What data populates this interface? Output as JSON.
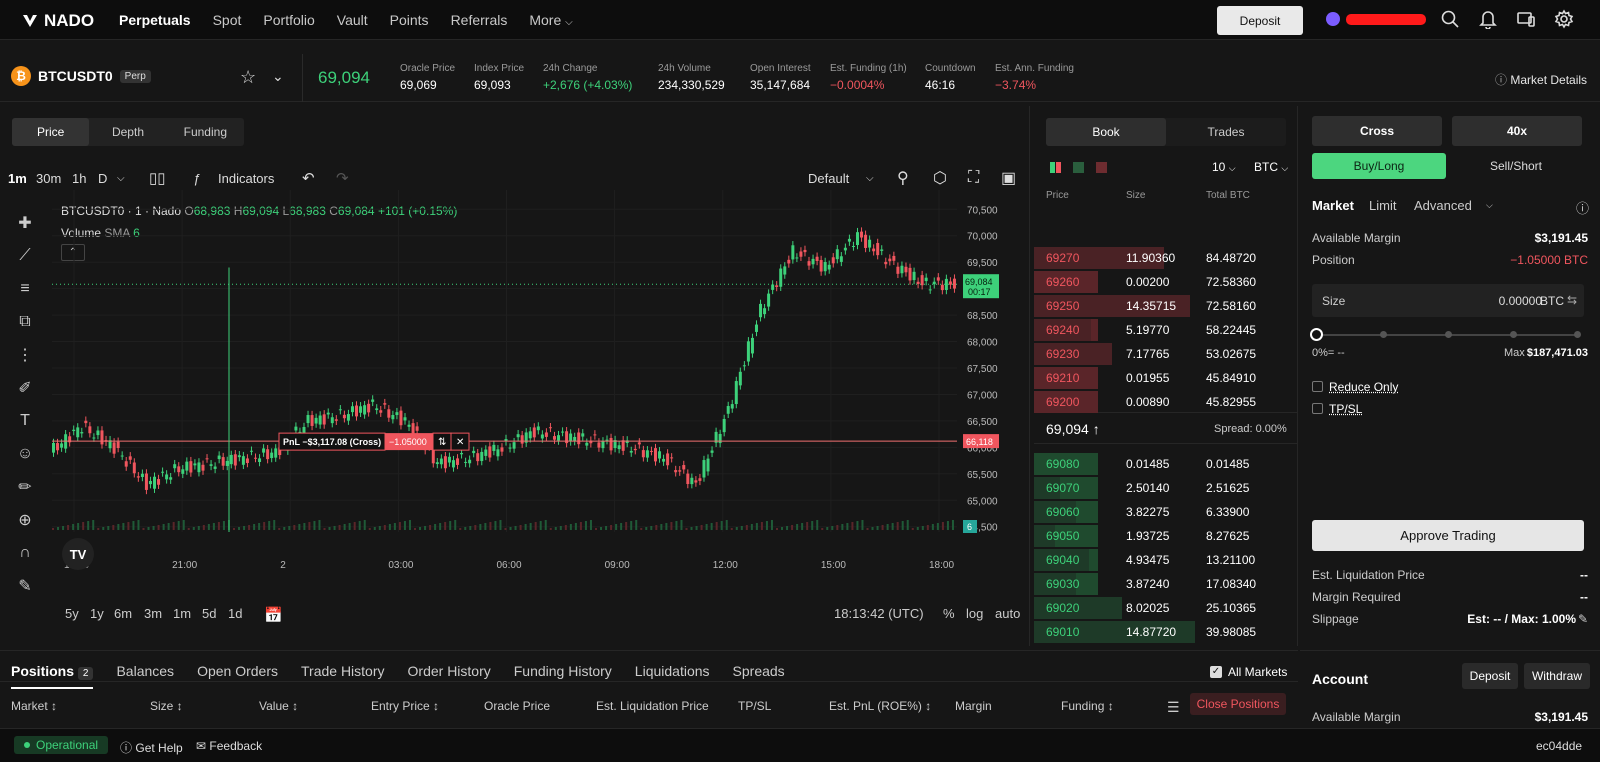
{
  "nav": {
    "brand": "NADO",
    "items": [
      "Perpetuals",
      "Spot",
      "Portfolio",
      "Vault",
      "Points",
      "Referrals",
      "More"
    ],
    "deposit_label": "Deposit"
  },
  "market": {
    "symbol": "BTCUSDT0",
    "badge": "Perp",
    "last_price": "69,094",
    "stats": [
      {
        "label": "Oracle Price",
        "value": "69,069",
        "tone": "neutral"
      },
      {
        "label": "Index Price",
        "value": "69,093",
        "tone": "neutral"
      },
      {
        "label": "24h Change",
        "value": "+2,676 (+4.03%)",
        "tone": "up"
      },
      {
        "label": "24h Volume",
        "value": "234,330,529",
        "tone": "neutral"
      },
      {
        "label": "Open Interest",
        "value": "35,147,684",
        "tone": "neutral"
      },
      {
        "label": "Est. Funding (1h)",
        "value": "−0.0004%",
        "tone": "down"
      },
      {
        "label": "Countdown",
        "value": "46:16",
        "tone": "neutral"
      },
      {
        "label": "Est. Ann. Funding",
        "value": "−3.74%",
        "tone": "down"
      }
    ],
    "details_label": "Market Details"
  },
  "chart_tabs": [
    "Price",
    "Depth",
    "Funding"
  ],
  "toolbar": {
    "intervals": [
      "1m",
      "30m",
      "1h",
      "D"
    ],
    "indicators_label": "Indicators",
    "layout_label": "Default"
  },
  "chart_legend": {
    "title": "BTCUSDT0 · 1 · Nado",
    "o": "68,983",
    "h": "69,094",
    "l": "68,983",
    "c": "69,084",
    "change": "+101 (+0.15%)",
    "volume_label": "Volume",
    "sma_label": "SMA",
    "sma_value": "6"
  },
  "chart_data": {
    "type": "line",
    "title": "",
    "xlabel": "",
    "ylabel": "",
    "x_ticks": [
      "18:00",
      "21:00",
      "2",
      "03:00",
      "06:00",
      "09:00",
      "12:00",
      "15:00",
      "18:00"
    ],
    "y_ticks": [
      "70,500",
      "70,000",
      "69,500",
      "69,000",
      "68,500",
      "68,000",
      "67,500",
      "67,000",
      "66,500",
      "66,000",
      "65,500",
      "65,000",
      "64,500"
    ],
    "ylim": [
      64400,
      70600
    ],
    "series": [
      {
        "name": "",
        "x": [
          "18:00",
          "19:00",
          "20:00",
          "21:00",
          "22:00",
          "23:00",
          "2",
          "01:00",
          "02:00",
          "03:00",
          "04:00",
          "05:00",
          "06:00",
          "07:00",
          "08:00",
          "09:00",
          "10:00",
          "11:00",
          "12:00",
          "13:00",
          "14:00",
          "15:00",
          "15:30",
          "16:00",
          "16:30",
          "17:00",
          "17:30",
          "18:00",
          "18:13"
        ],
        "values": [
          65900,
          66400,
          66000,
          65300,
          65600,
          65700,
          65800,
          65900,
          66500,
          66600,
          66800,
          66500,
          65700,
          65800,
          66000,
          66300,
          66200,
          66100,
          66000,
          65800,
          65300,
          66700,
          68600,
          69700,
          69400,
          70000,
          69500,
          69100,
          69084
        ]
      }
    ],
    "last_price_label": "69,084",
    "last_price_countdown": "00:17",
    "position_line_value": "66,118",
    "volume_last": "6",
    "pnl_label": "PnL −$3,117.08 (Cross)",
    "pnl_size": "−1.05000"
  },
  "chart_bottom": {
    "ranges": [
      "5y",
      "1y",
      "6m",
      "3m",
      "1m",
      "5d",
      "1d"
    ],
    "time": "18:13:42 (UTC)",
    "percent": "%",
    "log": "log",
    "auto": "auto"
  },
  "book": {
    "tabs": [
      "Book",
      "Trades"
    ],
    "depth": "10",
    "unit": "BTC",
    "headers": [
      "Price",
      "Size",
      "Total BTC"
    ],
    "asks": [
      {
        "price": "69270",
        "size": "11.90360",
        "total": "84.48720",
        "fill": 0.5
      },
      {
        "price": "69260",
        "size": "0.00200",
        "total": "72.58360",
        "fill": 0.0
      },
      {
        "price": "69250",
        "size": "14.35715",
        "total": "72.58160",
        "fill": 0.6
      },
      {
        "price": "69240",
        "size": "5.19770",
        "total": "58.22445",
        "fill": 0.22
      },
      {
        "price": "69230",
        "size": "7.17765",
        "total": "53.02675",
        "fill": 0.3
      },
      {
        "price": "69210",
        "size": "0.01955",
        "total": "45.84910",
        "fill": 0.0
      },
      {
        "price": "69200",
        "size": "0.00890",
        "total": "45.82955",
        "fill": 0.0
      }
    ],
    "mid_price": "69,094 ↑",
    "spread": "Spread: 0.00%",
    "bids": [
      {
        "price": "69080",
        "size": "0.01485",
        "total": "0.01485",
        "fill": 0.0
      },
      {
        "price": "69070",
        "size": "2.50140",
        "total": "2.51625",
        "fill": 0.1
      },
      {
        "price": "69060",
        "size": "3.82275",
        "total": "6.33900",
        "fill": 0.16
      },
      {
        "price": "69050",
        "size": "1.93725",
        "total": "8.27625",
        "fill": 0.08
      },
      {
        "price": "69040",
        "size": "4.93475",
        "total": "13.21100",
        "fill": 0.21
      },
      {
        "price": "69030",
        "size": "3.87240",
        "total": "17.08340",
        "fill": 0.16
      },
      {
        "price": "69020",
        "size": "8.02025",
        "total": "25.10365",
        "fill": 0.34
      },
      {
        "price": "69010",
        "size": "14.87720",
        "total": "39.98085",
        "fill": 0.62
      }
    ]
  },
  "form": {
    "margin_mode": "Cross",
    "leverage": "40x",
    "buy_label": "Buy/Long",
    "sell_label": "Sell/Short",
    "order_types": [
      "Market",
      "Limit",
      "Advanced"
    ],
    "available_margin_label": "Available Margin",
    "available_margin": "$3,191.45",
    "position_label": "Position",
    "position": "−1.05000 BTC",
    "size_label": "Size",
    "size_value": "0.00000",
    "size_unit": "BTC",
    "slider_fill": 0,
    "pct_label": "0%= --",
    "max_label": "Max",
    "max_value": "$187,471.03",
    "reduce_only": "Reduce Only",
    "tpsl": "TP/SL",
    "approve_label": "Approve Trading",
    "liq_label": "Est. Liquidation Price",
    "liq_value": "--",
    "margin_req_label": "Margin Required",
    "margin_req_value": "--",
    "slippage_label": "Slippage",
    "slippage_value": "Est: -- / Max: 1.00%"
  },
  "positions": {
    "tabs": [
      "Positions",
      "Balances",
      "Open Orders",
      "Trade History",
      "Order History",
      "Funding History",
      "Liquidations",
      "Spreads"
    ],
    "count": "2",
    "all_markets": "All Markets",
    "columns": [
      "Market",
      "Size",
      "Value",
      "Entry Price",
      "Oracle Price",
      "Est. Liquidation Price",
      "TP/SL",
      "Est. PnL (ROE%)",
      "Margin",
      "Funding"
    ],
    "close_label": "Close Positions"
  },
  "account": {
    "title": "Account",
    "deposit": "Deposit",
    "withdraw": "Withdraw",
    "available_margin_label": "Available Margin",
    "available_margin": "$3,191.45"
  },
  "footer": {
    "status": "Operational",
    "help": "Get Help",
    "feedback": "Feedback",
    "build": "ec04dde"
  }
}
